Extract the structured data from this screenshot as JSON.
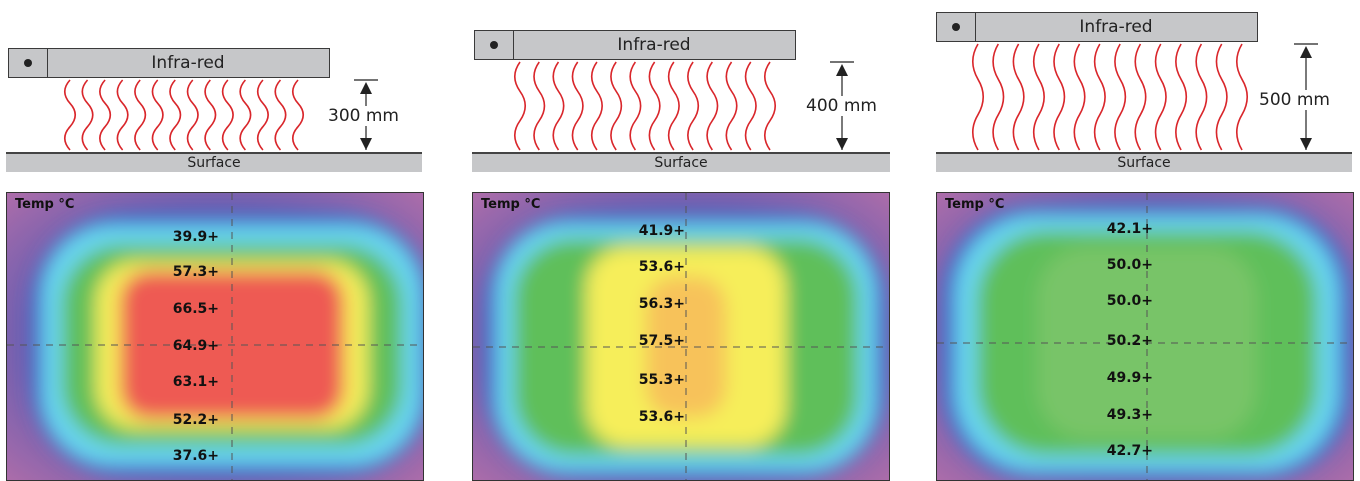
{
  "panels": [
    {
      "heater_label": "Infra-red",
      "distance": "300 mm",
      "surface_label": "Surface",
      "thermal_title": "Temp °C",
      "temps": [
        "39.9+",
        "57.3+",
        "66.5+",
        "64.9+",
        "63.1+",
        "52.2+",
        "37.6+"
      ]
    },
    {
      "heater_label": "Infra-red",
      "distance": "400 mm",
      "surface_label": "Surface",
      "thermal_title": "Temp °C",
      "temps": [
        "41.9+",
        "53.6+",
        "56.3+",
        "57.5+",
        "55.3+",
        "53.6+"
      ]
    },
    {
      "heater_label": "Infra-red",
      "distance": "500 mm",
      "surface_label": "Surface",
      "thermal_title": "Temp °C",
      "temps": [
        "42.1+",
        "50.0+",
        "50.0+",
        "50.2+",
        "49.9+",
        "49.3+",
        "42.7+"
      ]
    }
  ],
  "colors": {
    "wave": "#d9262b",
    "heater": "#c6c7c9",
    "outer": "#6f5fb0",
    "cool": "#3b6fcf",
    "cyan": "#69d6ef",
    "green": "#5fbf5a",
    "yellow": "#f6ee5a",
    "red": "#ee5a52"
  }
}
